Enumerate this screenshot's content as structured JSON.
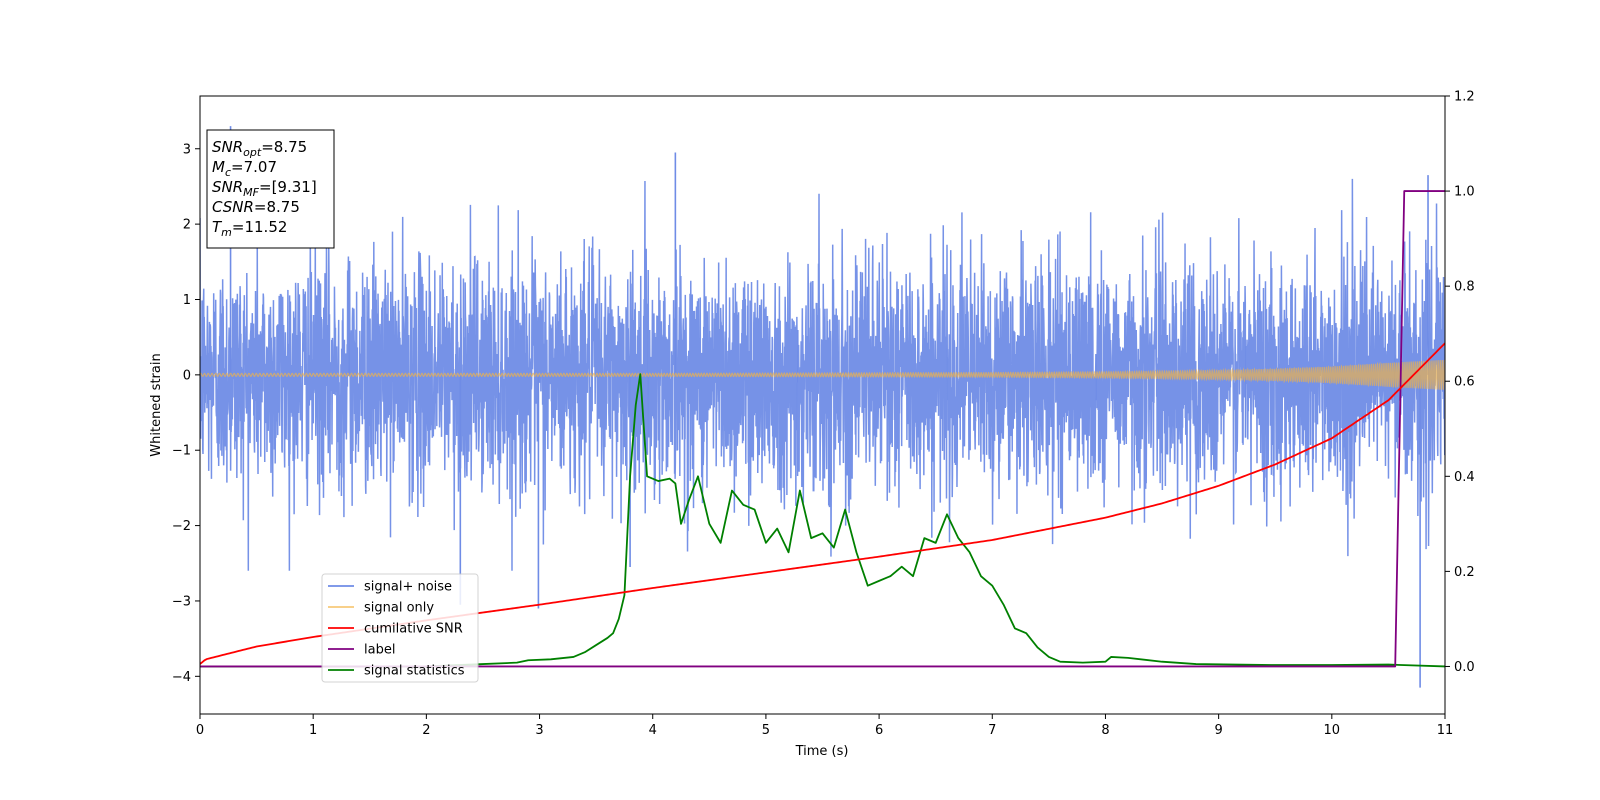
{
  "chart_data": {
    "type": "line",
    "xlabel": "Time (s)",
    "ylabel": "Whitened strain",
    "y2label": "",
    "xlim": [
      0,
      11
    ],
    "ylim": [
      -4.5,
      3.7
    ],
    "y2lim": [
      -0.1,
      1.2
    ],
    "xticks": [
      "0",
      "1",
      "2",
      "3",
      "4",
      "5",
      "6",
      "7",
      "8",
      "9",
      "10",
      "11"
    ],
    "yticks": [
      "3",
      "2",
      "1",
      "0",
      "−1",
      "−2",
      "−3",
      "−4"
    ],
    "y2ticks": [
      "1.2",
      "1.0",
      "0.8",
      "0.6",
      "0.4",
      "0.2",
      "0.0"
    ],
    "grid": false,
    "legend_placement": "lower-left",
    "info_box": {
      "lines": [
        {
          "name": "SNR",
          "sub": "opt",
          "value": "=8.75"
        },
        {
          "name": "M",
          "sub": "c",
          "value": "=7.07"
        },
        {
          "name": "SNR",
          "sub": "MF",
          "value": "=[9.31]"
        },
        {
          "name": "CSNR",
          "sub": "",
          "value": "=8.75"
        },
        {
          "name": "T",
          "sub": "m",
          "value": "=11.52"
        }
      ]
    },
    "series": [
      {
        "name": "signal+ noise",
        "axis": "left",
        "color": "#6f8ce6",
        "noise_std": 0.75,
        "spikes": [
          [
            0.27,
            3.3
          ],
          [
            4.2,
            2.95
          ],
          [
            2.3,
            -3.05
          ],
          [
            2.99,
            -3.1
          ],
          [
            10.78,
            -4.15
          ],
          [
            10.85,
            2.65
          ],
          [
            3.8,
            -2.55
          ]
        ]
      },
      {
        "name": "signal only",
        "axis": "left",
        "color": "#f5b342",
        "envelope": {
          "t": [
            0,
            4,
            7,
            8,
            9,
            9.5,
            10,
            10.5,
            11
          ],
          "amp": [
            0.02,
            0.02,
            0.03,
            0.04,
            0.06,
            0.08,
            0.11,
            0.16,
            0.2
          ]
        }
      },
      {
        "name": "cumilative SNR",
        "axis": "right",
        "color": "#ff0000",
        "x": [
          0,
          0.05,
          0.5,
          1,
          2,
          3,
          4,
          5,
          6,
          7,
          8,
          8.5,
          9,
          9.5,
          10,
          10.5,
          11
        ],
        "y": [
          0.005,
          0.015,
          0.042,
          0.062,
          0.097,
          0.13,
          0.165,
          0.198,
          0.231,
          0.266,
          0.313,
          0.343,
          0.38,
          0.425,
          0.48,
          0.56,
          0.68
        ]
      },
      {
        "name": "label",
        "axis": "right",
        "color": "#800080",
        "x": [
          0,
          10.56,
          10.64,
          11
        ],
        "y": [
          0,
          0,
          1,
          1
        ]
      },
      {
        "name": "signal statistics",
        "axis": "right",
        "color": "#008000",
        "x": [
          0,
          2,
          2.5,
          2.8,
          2.9,
          3.1,
          3.3,
          3.4,
          3.5,
          3.6,
          3.65,
          3.7,
          3.75,
          3.8,
          3.85,
          3.89,
          3.95,
          4.05,
          4.15,
          4.2,
          4.25,
          4.32,
          4.4,
          4.5,
          4.6,
          4.7,
          4.8,
          4.9,
          5.0,
          5.1,
          5.2,
          5.3,
          5.4,
          5.5,
          5.6,
          5.7,
          5.8,
          5.9,
          6.0,
          6.1,
          6.2,
          6.3,
          6.4,
          6.5,
          6.6,
          6.7,
          6.8,
          6.9,
          7.0,
          7.1,
          7.2,
          7.3,
          7.4,
          7.5,
          7.6,
          7.8,
          8.0,
          8.05,
          8.2,
          8.5,
          8.8,
          9.5,
          10.0,
          10.5,
          11.0
        ],
        "y": [
          0.0,
          0.0,
          0.005,
          0.008,
          0.013,
          0.015,
          0.02,
          0.03,
          0.045,
          0.06,
          0.07,
          0.1,
          0.15,
          0.4,
          0.55,
          0.615,
          0.4,
          0.39,
          0.395,
          0.385,
          0.3,
          0.35,
          0.4,
          0.3,
          0.26,
          0.37,
          0.34,
          0.33,
          0.26,
          0.29,
          0.24,
          0.37,
          0.27,
          0.28,
          0.25,
          0.33,
          0.24,
          0.17,
          0.18,
          0.19,
          0.21,
          0.19,
          0.27,
          0.26,
          0.32,
          0.27,
          0.24,
          0.19,
          0.17,
          0.13,
          0.08,
          0.07,
          0.04,
          0.02,
          0.01,
          0.008,
          0.01,
          0.02,
          0.018,
          0.01,
          0.005,
          0.003,
          0.003,
          0.004,
          0.0
        ]
      }
    ]
  }
}
